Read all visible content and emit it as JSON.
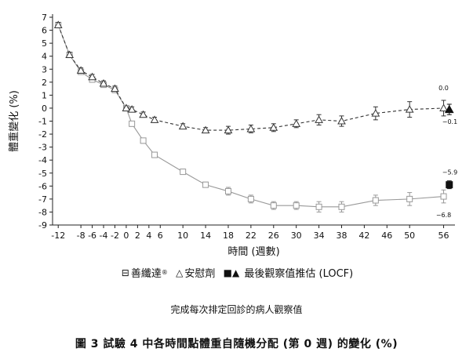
{
  "chart_data": {
    "type": "line",
    "title": "",
    "xlabel": "時間 (週數)",
    "ylabel": "體重變化 (%)",
    "ylim": [
      -9,
      7
    ],
    "xlim": [
      -13,
      58
    ],
    "yticks": [
      7,
      6,
      5,
      4,
      3,
      2,
      1,
      0,
      -1,
      -2,
      -3,
      -4,
      -5,
      -6,
      -7,
      -8,
      -9
    ],
    "xtick_labels": [
      "-12",
      "-8",
      "-6",
      "-4",
      "-2",
      "0",
      "2",
      "4",
      "6",
      "10",
      "14",
      "18",
      "22",
      "26",
      "30",
      "34",
      "38",
      "42",
      "46",
      "50",
      "56"
    ],
    "xtick_values": [
      -12,
      -8,
      -6,
      -4,
      -2,
      0,
      2,
      4,
      6,
      10,
      14,
      18,
      22,
      26,
      30,
      34,
      38,
      42,
      46,
      50,
      56
    ],
    "series": [
      {
        "name": "善纖達",
        "marker": "square-open",
        "line": "solid",
        "color": "#999999",
        "x": [
          -12,
          -10,
          -8,
          -6,
          -4,
          -2,
          0,
          1,
          3,
          5,
          10,
          14,
          18,
          22,
          26,
          30,
          34,
          38,
          44,
          50,
          56
        ],
        "y": [
          6.4,
          4.1,
          2.8,
          2.2,
          1.8,
          1.4,
          0.0,
          -1.2,
          -2.5,
          -3.6,
          -4.9,
          -5.9,
          -6.4,
          -7.0,
          -7.5,
          -7.5,
          -7.6,
          -7.6,
          -7.1,
          -7.0,
          -6.8
        ],
        "err": [
          0.2,
          0.2,
          0.2,
          0.2,
          0.2,
          0.2,
          0.1,
          0.2,
          0.2,
          0.2,
          0.2,
          0.2,
          0.3,
          0.3,
          0.3,
          0.3,
          0.4,
          0.4,
          0.4,
          0.5,
          0.5
        ]
      },
      {
        "name": "安慰劑",
        "marker": "triangle-open",
        "line": "dashed",
        "color": "#333333",
        "x": [
          -12,
          -10,
          -8,
          -6,
          -4,
          -2,
          0,
          1,
          3,
          5,
          10,
          14,
          18,
          22,
          26,
          30,
          34,
          38,
          44,
          50,
          56
        ],
        "y": [
          6.4,
          4.1,
          2.9,
          2.4,
          1.9,
          1.5,
          0.0,
          -0.1,
          -0.5,
          -0.9,
          -1.4,
          -1.7,
          -1.7,
          -1.6,
          -1.5,
          -1.2,
          -0.9,
          -1.0,
          -0.4,
          -0.1,
          0.0
        ],
        "err": [
          0.2,
          0.2,
          0.2,
          0.2,
          0.2,
          0.2,
          0.1,
          0.2,
          0.2,
          0.2,
          0.2,
          0.2,
          0.3,
          0.3,
          0.3,
          0.3,
          0.4,
          0.4,
          0.5,
          0.6,
          0.6
        ]
      }
    ],
    "locf": [
      {
        "series": "善纖達",
        "marker": "square-filled",
        "x": 57,
        "y": -5.9,
        "err": 0.3
      },
      {
        "series": "安慰劑",
        "marker": "triangle-filled",
        "x": 57,
        "y": -0.1,
        "err": 0.4
      }
    ],
    "annotations": [
      {
        "text": "0.0",
        "x": 56,
        "y": 1.4
      },
      {
        "text": "−0.1",
        "x": 57.1,
        "y": -1.2
      },
      {
        "text": "−5.9",
        "x": 57.1,
        "y": -5.1
      },
      {
        "text": "−6.8",
        "x": 56,
        "y": -8.4
      }
    ]
  },
  "legend": {
    "series1_symbol": "⊟",
    "series1_label": "善纖達",
    "series1_reg": "®",
    "series2_symbol": "△",
    "series2_label": "安慰劑",
    "locf_symbols": "■▲",
    "locf_label": "最後觀察值推估 (LOCF)"
  },
  "note": "完成每次排定回診的病人觀察值",
  "caption": "圖 3 試驗 4 中各時間點體重自隨機分配 (第 0 週) 的變化 (%)"
}
